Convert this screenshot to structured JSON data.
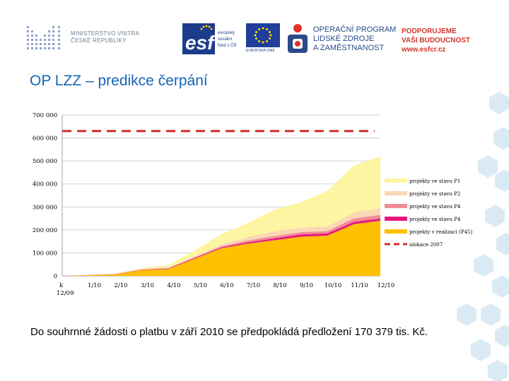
{
  "header": {
    "ministry_line1": "MINISTERSTVO VNITRA",
    "ministry_line2": "ČESKÉ REPUBLIKY",
    "esf_logo_text": "esf",
    "esf_sub": "evropský sociální fond v ČR",
    "eu_text": "EVROPSKÁ UNIE",
    "op_line1": "OPERAČNÍ PROGRAM",
    "op_line2": "LIDSKÉ ZDROJE",
    "op_line3": "A ZAMĚSTNANOST",
    "support_line1": "PODPORUJEME",
    "support_line2": "VAŠI BUDOUCNOST",
    "support_line3": "www.esfcr.cz"
  },
  "title": "OP LZZ – predikce čerpání",
  "caption": "Do souhrnné žádosti o platbu v září 2010 se předpokládá předložení 170 379 tis. Kč.",
  "chart_data": {
    "type": "area",
    "stacked": true,
    "x": [
      "k 12/09",
      "1/10",
      "2/10",
      "3/10",
      "4/10",
      "5/10",
      "6/10",
      "7/10",
      "8/10",
      "9/10",
      "10/10",
      "11/10",
      "12/10"
    ],
    "ylim": [
      0,
      700000
    ],
    "yticks": [
      "0",
      "100 000",
      "200 000",
      "300 000",
      "400 000",
      "500 000",
      "600 000",
      "700 000"
    ],
    "grid": true,
    "legend_position": "right",
    "series": [
      {
        "name": "projekty v realizaci (P45)",
        "color": "#ffc000",
        "values": [
          0,
          3000,
          6000,
          25000,
          30000,
          75000,
          120000,
          140000,
          155000,
          170379,
          175000,
          225000,
          240000
        ]
      },
      {
        "name": "projekty ve stavu P4",
        "color": "#e8177f",
        "values": [
          0,
          500,
          1000,
          1500,
          2000,
          3000,
          4000,
          6000,
          8000,
          10000,
          10000,
          10000,
          10000
        ]
      },
      {
        "name": "projekty ve stavu P4",
        "color": "#f08c96",
        "values": [
          0,
          500,
          1000,
          1500,
          2000,
          3000,
          4000,
          8000,
          10000,
          10000,
          10000,
          15000,
          15000
        ]
      },
      {
        "name": "projekty ve stavu P2",
        "color": "#fbd7b4",
        "values": [
          0,
          500,
          1000,
          1500,
          2000,
          4000,
          8000,
          15000,
          20000,
          20000,
          20000,
          25000,
          30000
        ]
      },
      {
        "name": "projekty ve stavu P1",
        "color": "#fdf5a1",
        "values": [
          0,
          500,
          1000,
          5000,
          10000,
          25000,
          45000,
          60000,
          95000,
          110000,
          155000,
          205000,
          225000
        ]
      }
    ],
    "reference_line": {
      "name": "alokace 2007",
      "value": 630000,
      "color": "#d42c2c",
      "style": "dashed"
    }
  }
}
